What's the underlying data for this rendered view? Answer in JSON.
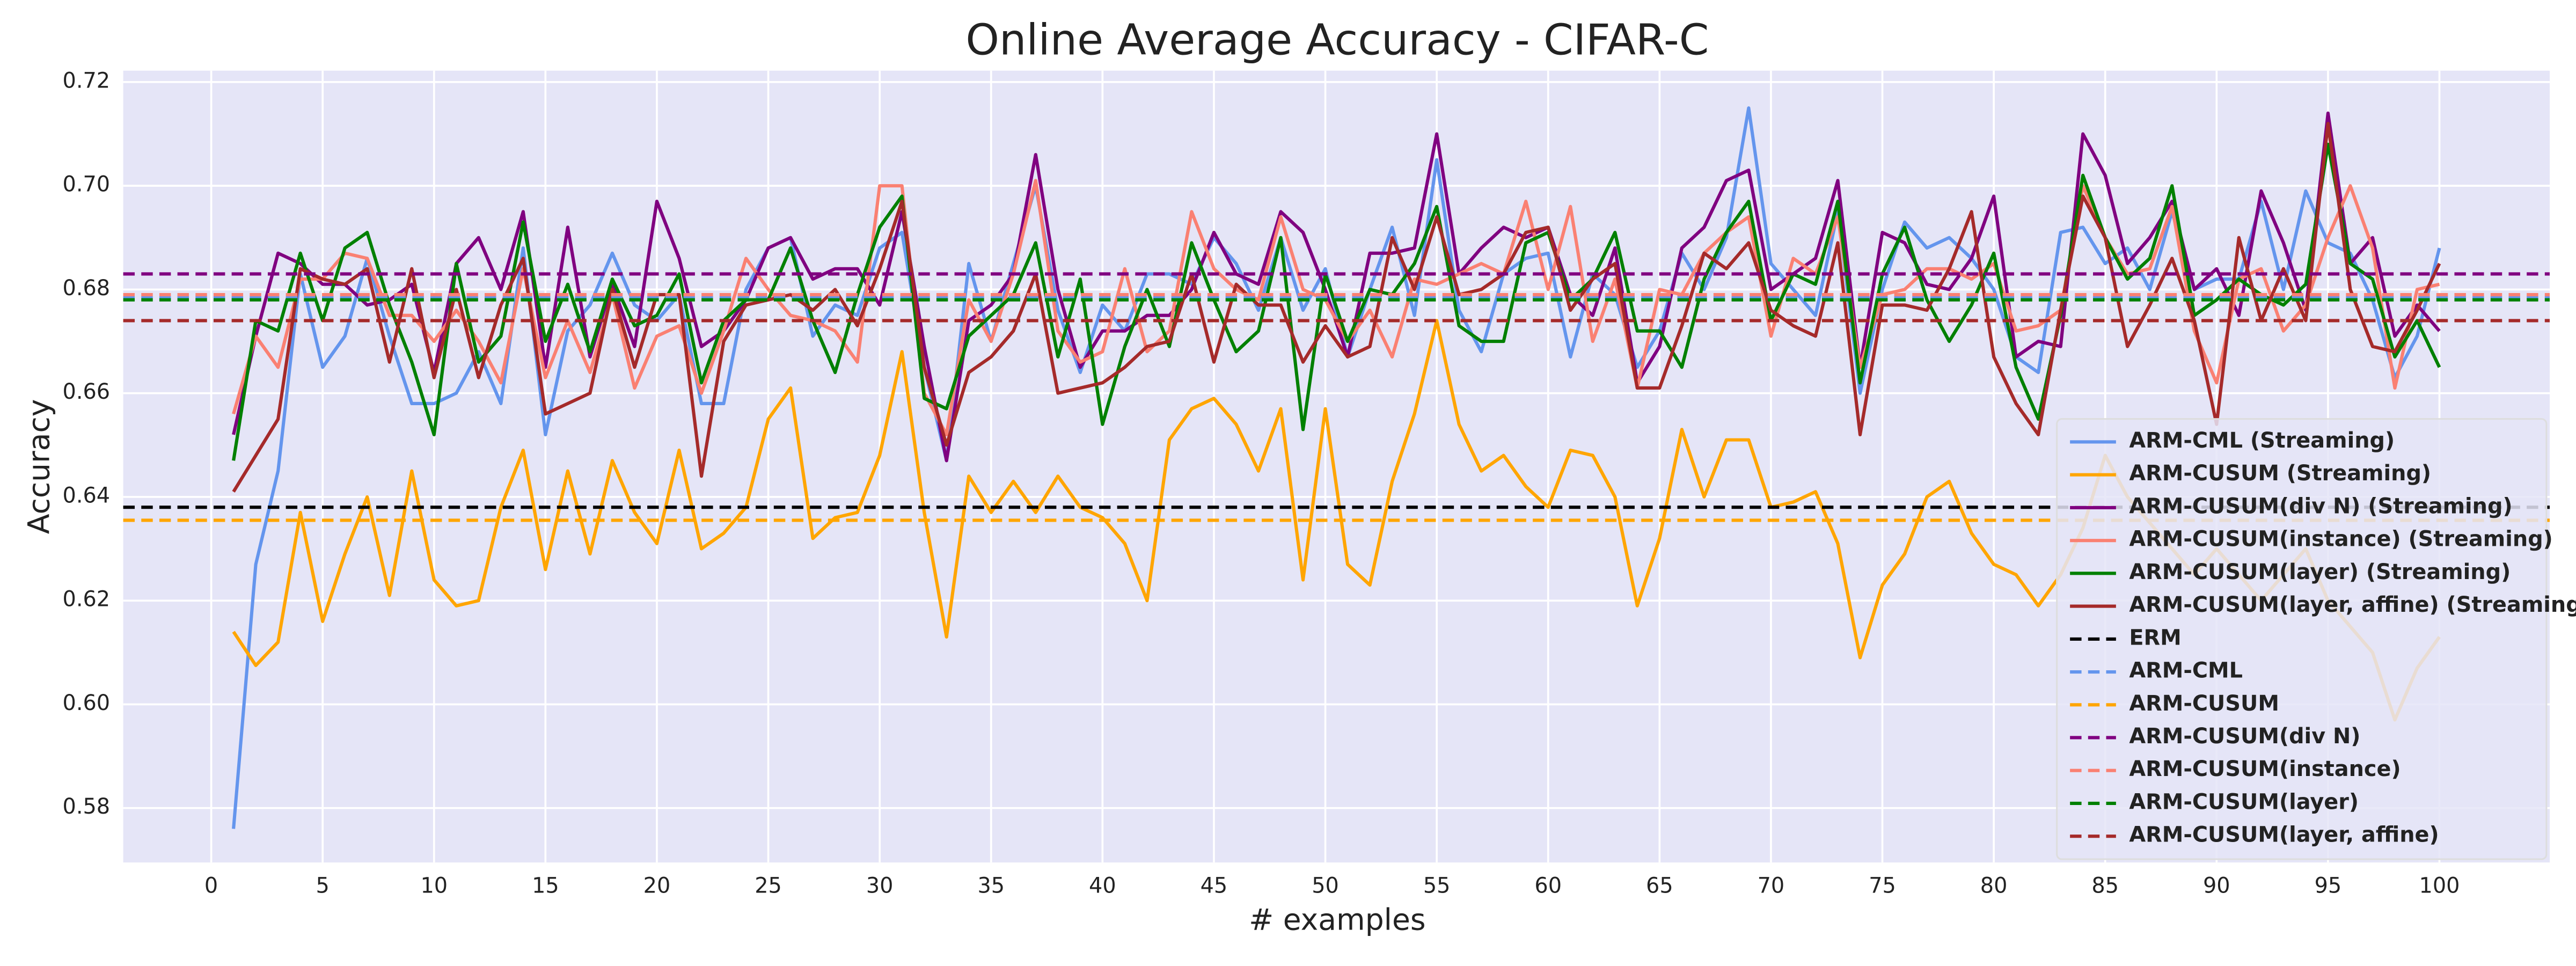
{
  "chart_data": {
    "type": "line",
    "title": "Online Average Accuracy - CIFAR-C",
    "xlabel": "# examples",
    "ylabel": "Accuracy",
    "xlim": [
      -3.95,
      104.95
    ],
    "ylim": [
      0.5695,
      0.7222
    ],
    "xticks": [
      0,
      5,
      10,
      15,
      20,
      25,
      30,
      35,
      40,
      45,
      50,
      55,
      60,
      65,
      70,
      75,
      80,
      85,
      90,
      95,
      100
    ],
    "yticks": [
      0.58,
      {
        "value": 0.6,
        "label": "0.60"
      },
      0.62,
      0.64,
      0.66,
      0.68,
      {
        "value": 0.7,
        "label": "0.70"
      },
      0.72
    ],
    "grid": true,
    "legend": "lower right",
    "x": [
      1,
      2,
      3,
      4,
      5,
      6,
      7,
      8,
      9,
      10,
      11,
      12,
      13,
      14,
      15,
      16,
      17,
      18,
      19,
      20,
      21,
      22,
      23,
      24,
      25,
      26,
      27,
      28,
      29,
      30,
      31,
      32,
      33,
      34,
      35,
      36,
      37,
      38,
      39,
      40,
      41,
      42,
      43,
      44,
      45,
      46,
      47,
      48,
      49,
      50,
      51,
      52,
      53,
      54,
      55,
      56,
      57,
      58,
      59,
      60,
      61,
      62,
      63,
      64,
      65,
      66,
      67,
      68,
      69,
      70,
      71,
      72,
      73,
      74,
      75,
      76,
      77,
      78,
      79,
      80,
      81,
      82,
      83,
      84,
      85,
      86,
      87,
      88,
      89,
      90,
      91,
      92,
      93,
      94,
      95,
      96,
      97,
      98,
      99,
      100
    ],
    "series": [
      {
        "name": "ARM-CML (Streaming)",
        "color": "#6495ed",
        "values": [
          0.576,
          0.627,
          0.645,
          0.683,
          0.665,
          0.671,
          0.686,
          0.671,
          0.658,
          0.658,
          0.66,
          0.668,
          0.658,
          0.688,
          0.652,
          0.672,
          0.677,
          0.687,
          0.677,
          0.674,
          0.679,
          0.658,
          0.658,
          0.68,
          0.688,
          0.69,
          0.671,
          0.677,
          0.675,
          0.688,
          0.691,
          0.665,
          0.647,
          0.685,
          0.67,
          0.685,
          0.7,
          0.676,
          0.664,
          0.677,
          0.672,
          0.683,
          0.683,
          0.681,
          0.69,
          0.685,
          0.676,
          0.69,
          0.676,
          0.684,
          0.667,
          0.68,
          0.692,
          0.675,
          0.705,
          0.676,
          0.668,
          0.683,
          0.686,
          0.687,
          0.667,
          0.683,
          0.679,
          0.665,
          0.672,
          0.687,
          0.68,
          0.69,
          0.715,
          0.685,
          0.68,
          0.675,
          0.695,
          0.66,
          0.68,
          0.693,
          0.688,
          0.69,
          0.686,
          0.68,
          0.667,
          0.664,
          0.691,
          0.692,
          0.685,
          0.688,
          0.68,
          0.695,
          0.68,
          0.682,
          0.682,
          0.697,
          0.68,
          0.699,
          0.689,
          0.687,
          0.678,
          0.663,
          0.671,
          0.688
        ]
      },
      {
        "name": "ARM-CUSUM (Streaming)",
        "color": "#ffa500",
        "values": [
          0.614,
          0.6075,
          0.612,
          0.637,
          0.616,
          0.629,
          0.64,
          0.621,
          0.645,
          0.624,
          0.619,
          0.62,
          0.638,
          0.649,
          0.626,
          0.645,
          0.629,
          0.647,
          0.637,
          0.631,
          0.649,
          0.63,
          0.633,
          0.638,
          0.655,
          0.661,
          0.632,
          0.636,
          0.637,
          0.648,
          0.668,
          0.637,
          0.613,
          0.644,
          0.637,
          0.643,
          0.637,
          0.644,
          0.638,
          0.636,
          0.631,
          0.62,
          0.651,
          0.657,
          0.659,
          0.654,
          0.645,
          0.657,
          0.624,
          0.657,
          0.627,
          0.623,
          0.643,
          0.656,
          0.674,
          0.654,
          0.645,
          0.648,
          0.642,
          0.638,
          0.649,
          0.648,
          0.64,
          0.619,
          0.632,
          0.653,
          0.64,
          0.651,
          0.651,
          0.638,
          0.639,
          0.641,
          0.631,
          0.609,
          0.623,
          0.629,
          0.64,
          0.643,
          0.633,
          0.627,
          0.625,
          0.619,
          0.625,
          0.634,
          0.648,
          0.64,
          0.635,
          0.63,
          0.625,
          0.63,
          0.625,
          0.62,
          0.625,
          0.63,
          0.62,
          0.615,
          0.61,
          0.597,
          0.607,
          0.613
        ]
      },
      {
        "name": "ARM-CUSUM(div N) (Streaming)",
        "color": "#800080",
        "values": [
          0.652,
          0.671,
          0.687,
          0.685,
          0.681,
          0.681,
          0.677,
          0.678,
          0.681,
          0.664,
          0.685,
          0.69,
          0.68,
          0.695,
          0.665,
          0.692,
          0.667,
          0.681,
          0.669,
          0.697,
          0.686,
          0.669,
          0.672,
          0.678,
          0.688,
          0.69,
          0.682,
          0.684,
          0.684,
          0.677,
          0.695,
          0.669,
          0.647,
          0.674,
          0.677,
          0.683,
          0.706,
          0.68,
          0.665,
          0.672,
          0.672,
          0.675,
          0.675,
          0.68,
          0.691,
          0.683,
          0.681,
          0.695,
          0.691,
          0.68,
          0.667,
          0.687,
          0.687,
          0.688,
          0.71,
          0.683,
          0.688,
          0.692,
          0.69,
          0.692,
          0.679,
          0.675,
          0.688,
          0.662,
          0.669,
          0.688,
          0.692,
          0.701,
          0.703,
          0.68,
          0.683,
          0.686,
          0.701,
          0.665,
          0.691,
          0.689,
          0.681,
          0.68,
          0.686,
          0.698,
          0.667,
          0.67,
          0.669,
          0.71,
          0.702,
          0.685,
          0.69,
          0.697,
          0.68,
          0.684,
          0.675,
          0.699,
          0.689,
          0.676,
          0.714,
          0.685,
          0.69,
          0.671,
          0.677,
          0.672
        ]
      },
      {
        "name": "ARM-CUSUM(instance) (Streaming)",
        "color": "#fa8072",
        "values": [
          0.656,
          0.671,
          0.665,
          0.682,
          0.682,
          0.687,
          0.686,
          0.675,
          0.675,
          0.67,
          0.676,
          0.67,
          0.662,
          0.684,
          0.663,
          0.674,
          0.664,
          0.679,
          0.661,
          0.671,
          0.673,
          0.66,
          0.672,
          0.686,
          0.68,
          0.675,
          0.674,
          0.672,
          0.666,
          0.7,
          0.7,
          0.66,
          0.652,
          0.678,
          0.67,
          0.683,
          0.701,
          0.672,
          0.666,
          0.668,
          0.684,
          0.668,
          0.672,
          0.695,
          0.684,
          0.68,
          0.678,
          0.694,
          0.68,
          0.678,
          0.67,
          0.676,
          0.667,
          0.682,
          0.681,
          0.683,
          0.685,
          0.683,
          0.697,
          0.68,
          0.696,
          0.67,
          0.682,
          0.661,
          0.68,
          0.679,
          0.687,
          0.691,
          0.694,
          0.671,
          0.686,
          0.683,
          0.694,
          0.665,
          0.679,
          0.68,
          0.684,
          0.684,
          0.682,
          0.685,
          0.672,
          0.673,
          0.676,
          0.7,
          0.69,
          0.683,
          0.684,
          0.696,
          0.672,
          0.662,
          0.682,
          0.684,
          0.672,
          0.677,
          0.69,
          0.7,
          0.688,
          0.661,
          0.68,
          0.681
        ]
      },
      {
        "name": "ARM-CUSUM(layer) (Streaming)",
        "color": "#008000",
        "values": [
          0.647,
          0.674,
          0.672,
          0.687,
          0.674,
          0.688,
          0.691,
          0.677,
          0.666,
          0.652,
          0.685,
          0.666,
          0.671,
          0.693,
          0.67,
          0.681,
          0.668,
          0.682,
          0.673,
          0.675,
          0.683,
          0.662,
          0.674,
          0.678,
          0.678,
          0.688,
          0.674,
          0.664,
          0.679,
          0.692,
          0.698,
          0.659,
          0.657,
          0.671,
          0.675,
          0.679,
          0.689,
          0.667,
          0.682,
          0.654,
          0.669,
          0.68,
          0.669,
          0.689,
          0.678,
          0.668,
          0.672,
          0.69,
          0.653,
          0.683,
          0.67,
          0.68,
          0.679,
          0.685,
          0.696,
          0.673,
          0.67,
          0.67,
          0.689,
          0.691,
          0.678,
          0.682,
          0.691,
          0.672,
          0.672,
          0.665,
          0.682,
          0.691,
          0.697,
          0.674,
          0.683,
          0.681,
          0.697,
          0.662,
          0.683,
          0.692,
          0.678,
          0.67,
          0.677,
          0.687,
          0.665,
          0.655,
          0.675,
          0.702,
          0.69,
          0.682,
          0.686,
          0.7,
          0.675,
          0.678,
          0.682,
          0.679,
          0.677,
          0.681,
          0.708,
          0.685,
          0.682,
          0.667,
          0.674,
          0.665
        ]
      },
      {
        "name": "ARM-CUSUM(layer, affine) (Streaming)",
        "color": "#a52a2a",
        "values": [
          0.641,
          0.648,
          0.655,
          0.684,
          0.682,
          0.681,
          0.684,
          0.666,
          0.684,
          0.663,
          0.68,
          0.663,
          0.677,
          0.686,
          0.656,
          0.658,
          0.66,
          0.68,
          0.665,
          0.679,
          0.679,
          0.644,
          0.67,
          0.677,
          0.678,
          0.679,
          0.676,
          0.68,
          0.673,
          0.684,
          0.697,
          0.665,
          0.65,
          0.664,
          0.667,
          0.672,
          0.683,
          0.66,
          0.661,
          0.662,
          0.665,
          0.669,
          0.67,
          0.683,
          0.666,
          0.681,
          0.677,
          0.677,
          0.666,
          0.673,
          0.667,
          0.669,
          0.69,
          0.68,
          0.694,
          0.679,
          0.68,
          0.683,
          0.691,
          0.692,
          0.676,
          0.682,
          0.685,
          0.661,
          0.661,
          0.673,
          0.687,
          0.684,
          0.689,
          0.676,
          0.673,
          0.671,
          0.689,
          0.652,
          0.677,
          0.677,
          0.676,
          0.684,
          0.695,
          0.667,
          0.658,
          0.652,
          0.676,
          0.698,
          0.69,
          0.669,
          0.677,
          0.686,
          0.674,
          0.654,
          0.69,
          0.674,
          0.684,
          0.674,
          0.712,
          0.68,
          0.669,
          0.668,
          0.676,
          0.685
        ]
      }
    ],
    "hlines": [
      {
        "name": "ERM",
        "color": "#000000",
        "value": 0.638
      },
      {
        "name": "ARM-CML",
        "color": "#6495ed",
        "value": 0.6785
      },
      {
        "name": "ARM-CUSUM",
        "color": "#ffa500",
        "value": 0.6355
      },
      {
        "name": "ARM-CUSUM(div N)",
        "color": "#800080",
        "value": 0.683
      },
      {
        "name": "ARM-CUSUM(instance)",
        "color": "#fa8072",
        "value": 0.679
      },
      {
        "name": "ARM-CUSUM(layer)",
        "color": "#008000",
        "value": 0.678
      },
      {
        "name": "ARM-CUSUM(layer, affine)",
        "color": "#a52a2a",
        "value": 0.674
      }
    ]
  }
}
